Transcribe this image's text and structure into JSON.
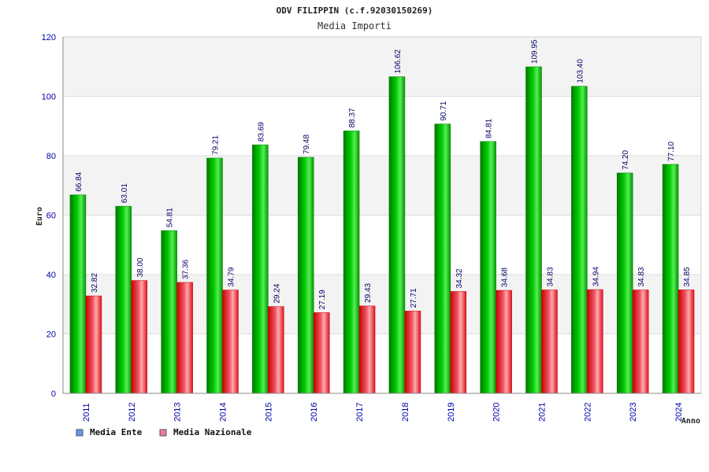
{
  "chart_data": {
    "type": "bar",
    "title": "ODV FILIPPIN (c.f.92030150269)",
    "subtitle": "Media Importi",
    "xlabel": "Anno",
    "ylabel": "Euro",
    "ylim": [
      0,
      120
    ],
    "yticks": [
      0,
      20,
      40,
      60,
      80,
      100,
      120
    ],
    "categories": [
      "2011",
      "2012",
      "2013",
      "2014",
      "2015",
      "2016",
      "2017",
      "2018",
      "2019",
      "2020",
      "2021",
      "2022",
      "2023",
      "2024"
    ],
    "series": [
      {
        "name": "Media Ente",
        "legend_color": "#6699ee",
        "color": "#00bb00",
        "values": [
          66.84,
          63.01,
          54.81,
          79.21,
          83.69,
          79.48,
          88.37,
          106.62,
          90.71,
          84.81,
          109.95,
          103.4,
          74.2,
          77.1
        ],
        "labels": [
          "66.84",
          "63.01",
          "54.81",
          "79.21",
          "83.69",
          "79.48",
          "88.37",
          "106.62",
          "90.71",
          "84.81",
          "109.95",
          "103.40",
          "74.20",
          "77.10"
        ]
      },
      {
        "name": "Media Nazionale",
        "legend_color": "#ee77aa",
        "color": "#ee1122",
        "values": [
          32.82,
          38.0,
          37.36,
          34.79,
          29.24,
          27.19,
          29.43,
          27.71,
          34.32,
          34.68,
          34.83,
          34.94,
          34.83,
          34.85
        ],
        "labels": [
          "32.82",
          "38.00",
          "37.36",
          "34.79",
          "29.24",
          "27.19",
          "29.43",
          "27.71",
          "34.32",
          "34.68",
          "34.83",
          "34.94",
          "34.83",
          "34.85"
        ]
      }
    ],
    "grid": true,
    "legend_position": "bottom-left"
  }
}
